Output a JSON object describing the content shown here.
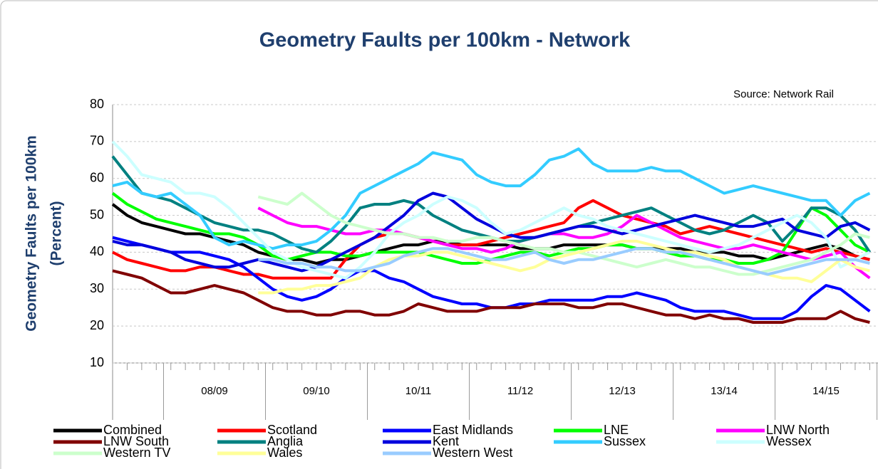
{
  "chart_data": {
    "type": "line",
    "title": "Geometry Faults per 100km - Network",
    "ylabel": [
      "Geometry Faults per 100km",
      "(Percent)"
    ],
    "annotation": "Source: Network Rail",
    "ylim": [
      10,
      80
    ],
    "yticks": [
      10,
      20,
      30,
      40,
      50,
      60,
      70,
      80
    ],
    "grid": true,
    "categories": [
      null,
      null,
      null,
      null,
      null,
      null,
      null,
      "08/09",
      null,
      null,
      null,
      null,
      null,
      null,
      "09/10",
      null,
      null,
      null,
      null,
      null,
      null,
      "10/11",
      null,
      null,
      null,
      null,
      null,
      null,
      "11/12",
      null,
      null,
      null,
      null,
      null,
      null,
      "12/13",
      null,
      null,
      null,
      null,
      null,
      null,
      "13/14",
      null,
      null,
      null,
      null,
      null,
      null,
      "14/15",
      null,
      null,
      null
    ],
    "series": [
      {
        "name": "Combined",
        "color": "#000000",
        "values": [
          53,
          50,
          48,
          47,
          46,
          45,
          45,
          44,
          43,
          42,
          40,
          39,
          38,
          38,
          37,
          38,
          38,
          39,
          40,
          41,
          42,
          42,
          43,
          43,
          42,
          42,
          42,
          42,
          41,
          41,
          41,
          42,
          42,
          42,
          42,
          42,
          41,
          41,
          41,
          41,
          40,
          40,
          40,
          39,
          39,
          38,
          39,
          40,
          41,
          42,
          41,
          39,
          38
        ]
      },
      {
        "name": "Scotland",
        "color": "#ff0000",
        "values": [
          40,
          38,
          37,
          36,
          35,
          35,
          36,
          36,
          35,
          34,
          34,
          33,
          33,
          33,
          33,
          33,
          38,
          42,
          44,
          45,
          45,
          44,
          43,
          42,
          42,
          42,
          43,
          44,
          45,
          46,
          47,
          48,
          52,
          54,
          52,
          50,
          49,
          48,
          47,
          45,
          46,
          47,
          46,
          45,
          44,
          43,
          42,
          41,
          40,
          41,
          40,
          39,
          38
        ]
      },
      {
        "name": "East Midlands",
        "color": "#0000ff",
        "values": [
          44,
          43,
          42,
          41,
          40,
          40,
          40,
          39,
          38,
          36,
          33,
          30,
          28,
          27,
          28,
          30,
          33,
          35,
          35,
          33,
          32,
          30,
          28,
          27,
          26,
          26,
          25,
          25,
          26,
          26,
          27,
          27,
          27,
          27,
          28,
          28,
          29,
          28,
          27,
          25,
          24,
          24,
          24,
          23,
          22,
          22,
          22,
          24,
          28,
          31,
          30,
          27,
          24
        ]
      },
      {
        "name": "LNE",
        "color": "#00ff00",
        "values": [
          56,
          53,
          51,
          49,
          48,
          47,
          46,
          45,
          45,
          44,
          42,
          39,
          38,
          39,
          40,
          40,
          39,
          39,
          40,
          40,
          40,
          40,
          39,
          38,
          37,
          37,
          38,
          39,
          40,
          40,
          39,
          40,
          41,
          41,
          42,
          42,
          41,
          41,
          40,
          39,
          39,
          38,
          38,
          37,
          37,
          38,
          40,
          46,
          52,
          50,
          46,
          42,
          40
        ]
      },
      {
        "name": "LNW North",
        "color": "#ff00ff",
        "values": [
          null,
          null,
          null,
          null,
          null,
          null,
          null,
          null,
          null,
          null,
          52,
          50,
          48,
          47,
          47,
          46,
          45,
          45,
          46,
          46,
          45,
          44,
          43,
          42,
          41,
          41,
          40,
          41,
          43,
          44,
          45,
          45,
          44,
          44,
          45,
          47,
          50,
          48,
          46,
          44,
          43,
          42,
          41,
          41,
          42,
          41,
          40,
          39,
          38,
          39,
          40,
          36,
          33
        ]
      },
      {
        "name": "LNW South",
        "color": "#800000",
        "values": [
          35,
          34,
          33,
          31,
          29,
          29,
          30,
          31,
          30,
          29,
          27,
          25,
          24,
          24,
          23,
          23,
          24,
          24,
          23,
          23,
          24,
          26,
          25,
          24,
          24,
          24,
          25,
          25,
          25,
          26,
          26,
          26,
          25,
          25,
          26,
          26,
          25,
          24,
          23,
          23,
          22,
          23,
          22,
          22,
          21,
          21,
          21,
          22,
          22,
          22,
          24,
          22,
          21
        ]
      },
      {
        "name": "Anglia",
        "color": "#008080",
        "values": [
          66,
          61,
          56,
          55,
          54,
          52,
          50,
          48,
          47,
          46,
          46,
          45,
          43,
          41,
          40,
          43,
          47,
          52,
          53,
          53,
          54,
          53,
          50,
          48,
          46,
          45,
          44,
          43,
          43,
          44,
          45,
          46,
          47,
          48,
          49,
          50,
          51,
          52,
          50,
          48,
          46,
          45,
          46,
          48,
          50,
          48,
          43,
          47,
          52,
          52,
          50,
          46,
          40
        ]
      },
      {
        "name": "Kent",
        "color": "#0000dd",
        "values": [
          43,
          42,
          42,
          41,
          40,
          38,
          37,
          36,
          36,
          37,
          38,
          37,
          36,
          35,
          36,
          38,
          40,
          42,
          44,
          47,
          50,
          54,
          56,
          55,
          52,
          49,
          47,
          45,
          44,
          44,
          45,
          46,
          47,
          47,
          46,
          45,
          46,
          47,
          48,
          49,
          50,
          49,
          48,
          47,
          47,
          48,
          49,
          46,
          45,
          44,
          47,
          48,
          46
        ]
      },
      {
        "name": "Sussex",
        "color": "#33ccff",
        "values": [
          58,
          59,
          56,
          55,
          56,
          53,
          50,
          44,
          42,
          43,
          42,
          41,
          42,
          42,
          43,
          46,
          50,
          56,
          58,
          60,
          62,
          64,
          67,
          66,
          65,
          61,
          59,
          58,
          58,
          61,
          65,
          66,
          68,
          64,
          62,
          62,
          62,
          63,
          62,
          62,
          60,
          58,
          56,
          57,
          58,
          57,
          56,
          55,
          54,
          54,
          50,
          54,
          56
        ]
      },
      {
        "name": "Wessex",
        "color": "#ccffff",
        "values": [
          70,
          66,
          61,
          60,
          59,
          56,
          56,
          55,
          52,
          48,
          44,
          40,
          38,
          36,
          35,
          34,
          33,
          36,
          40,
          45,
          48,
          50,
          53,
          55,
          54,
          52,
          48,
          45,
          46,
          48,
          50,
          52,
          50,
          49,
          47,
          46,
          45,
          44,
          43,
          42,
          41,
          40,
          41,
          42,
          44,
          46,
          48,
          50,
          48,
          44,
          36,
          38,
          40
        ]
      },
      {
        "name": "Western TV",
        "color": "#ccffcc",
        "values": [
          null,
          null,
          null,
          null,
          null,
          null,
          null,
          null,
          null,
          null,
          55,
          54,
          53,
          56,
          53,
          50,
          48,
          47,
          46,
          45,
          45,
          44,
          44,
          43,
          43,
          44,
          44,
          43,
          42,
          41,
          41,
          40,
          40,
          39,
          38,
          37,
          36,
          37,
          38,
          37,
          36,
          36,
          35,
          34,
          34,
          35,
          36,
          37,
          38,
          40,
          42,
          45,
          44
        ]
      },
      {
        "name": "Wales",
        "color": "#ffff99",
        "values": [
          null,
          null,
          null,
          null,
          null,
          null,
          null,
          null,
          null,
          null,
          29,
          29,
          30,
          30,
          31,
          31,
          32,
          33,
          36,
          38,
          39,
          39,
          40,
          40,
          39,
          38,
          37,
          36,
          35,
          36,
          38,
          39,
          40,
          41,
          42,
          43,
          43,
          42,
          41,
          40,
          40,
          39,
          38,
          36,
          35,
          34,
          33,
          33,
          32,
          35,
          38,
          36,
          35
        ]
      },
      {
        "name": "Western West",
        "color": "#99ccff",
        "values": [
          null,
          null,
          null,
          null,
          null,
          null,
          null,
          null,
          null,
          null,
          38,
          38,
          37,
          37,
          36,
          36,
          35,
          35,
          36,
          37,
          39,
          40,
          41,
          41,
          40,
          39,
          38,
          38,
          39,
          40,
          38,
          37,
          38,
          38,
          39,
          40,
          41,
          41,
          40,
          40,
          39,
          38,
          37,
          36,
          35,
          34,
          35,
          36,
          37,
          38,
          38,
          38,
          37
        ]
      }
    ]
  }
}
